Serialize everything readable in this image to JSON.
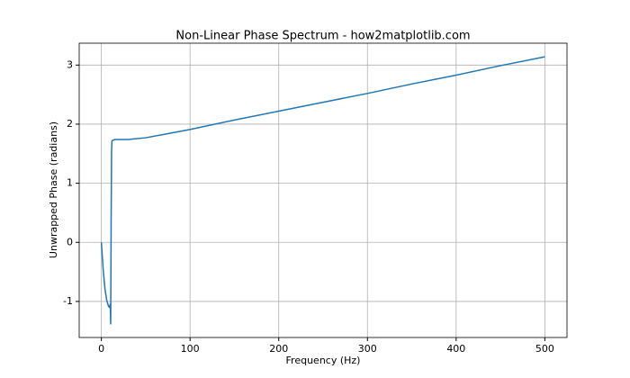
{
  "chart_data": {
    "type": "line",
    "title": "Non-Linear Phase Spectrum - how2matplotlib.com",
    "x_label": "Frequency (Hz)",
    "y_label": "Unwrapped Phase (radians)",
    "x": [
      0,
      2,
      4,
      6,
      8,
      9,
      10,
      10.5,
      11,
      11.5,
      12,
      15,
      20,
      30,
      50,
      75,
      100,
      150,
      200,
      250,
      300,
      350,
      400,
      450,
      500
    ],
    "series": [
      {
        "color": "#1f77b4",
        "values": [
          0,
          -0.45,
          -0.78,
          -0.98,
          -1.08,
          -1.1,
          -1.05,
          -1.38,
          0.3,
          1.55,
          1.72,
          1.74,
          1.74,
          1.74,
          1.77,
          1.84,
          1.91,
          2.07,
          2.22,
          2.37,
          2.52,
          2.68,
          2.83,
          2.99,
          3.14
        ]
      }
    ],
    "xlim": [
      -25,
      525
    ],
    "xticks": [
      0,
      100,
      200,
      300,
      400,
      500
    ],
    "ylim": [
      -1.61,
      3.37
    ],
    "yticks": [
      -1,
      0,
      1,
      2,
      3
    ],
    "grid": true
  }
}
